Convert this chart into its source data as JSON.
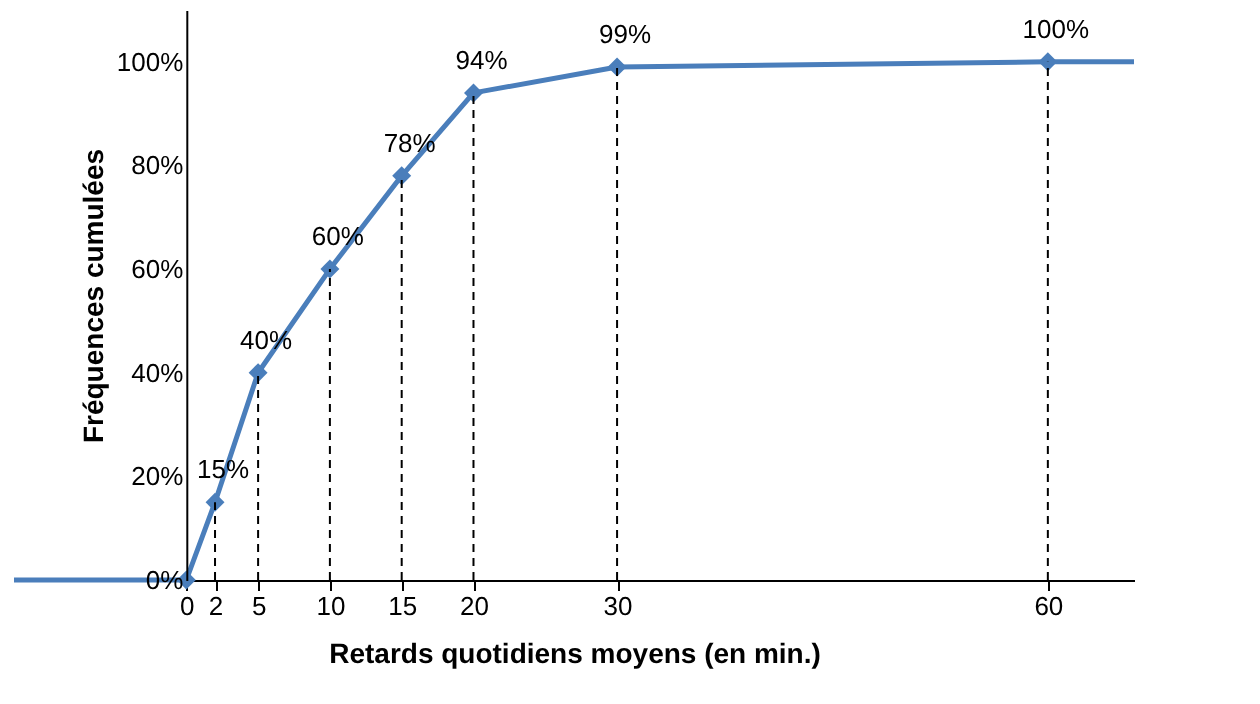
{
  "chart_data": {
    "type": "line",
    "xlabel": "Retards quotidiens moyens (en min.)",
    "ylabel": "Fréquences cumulées",
    "xlim": [
      -12,
      66
    ],
    "xticks": [
      0,
      2,
      5,
      10,
      15,
      20,
      30,
      60
    ],
    "ylim": [
      0,
      110
    ],
    "yticks": [
      {
        "value": 0,
        "label": "0%"
      },
      {
        "value": 20,
        "label": "20%"
      },
      {
        "value": 40,
        "label": "40%"
      },
      {
        "value": 60,
        "label": "60%"
      },
      {
        "value": 80,
        "label": "80%"
      },
      {
        "value": 100,
        "label": "100%"
      }
    ],
    "grid": false,
    "marker": "diamond",
    "line_style": "solid",
    "series": [
      {
        "color": "#4a7ebb",
        "x": [
          0,
          2,
          5,
          10,
          15,
          20,
          30,
          60
        ],
        "values": [
          0,
          15,
          40,
          60,
          78,
          94,
          99,
          100
        ],
        "value_labels": [
          null,
          "15%",
          "40%",
          "60%",
          "78%",
          "94%",
          "99%",
          "100%"
        ]
      },
      {
        "color": "#4a7ebb",
        "x": [
          -12,
          0
        ],
        "values": [
          0,
          0
        ],
        "marker": "none"
      },
      {
        "color": "#4a7ebb",
        "x": [
          60,
          66
        ],
        "values": [
          100,
          100
        ],
        "marker": "none"
      },
      {
        "color": "#000000",
        "x": [
          2,
          2
        ],
        "values": [
          0,
          15
        ],
        "marker": "none",
        "line_style": "dashed"
      },
      {
        "color": "#000000",
        "x": [
          5,
          5
        ],
        "values": [
          0,
          40
        ],
        "marker": "none",
        "line_style": "dashed"
      },
      {
        "color": "#000000",
        "x": [
          10,
          10
        ],
        "values": [
          0,
          60
        ],
        "marker": "none",
        "line_style": "dashed"
      },
      {
        "color": "#000000",
        "x": [
          15,
          15
        ],
        "values": [
          0,
          78
        ],
        "marker": "none",
        "line_style": "dashed"
      },
      {
        "color": "#000000",
        "x": [
          20,
          20
        ],
        "values": [
          0,
          94
        ],
        "marker": "none",
        "line_style": "dashed"
      },
      {
        "color": "#000000",
        "x": [
          30,
          30
        ],
        "values": [
          0,
          99
        ],
        "marker": "none",
        "line_style": "dashed"
      },
      {
        "color": "#000000",
        "x": [
          60,
          60
        ],
        "values": [
          0,
          100
        ],
        "marker": "none",
        "line_style": "dashed"
      }
    ]
  }
}
